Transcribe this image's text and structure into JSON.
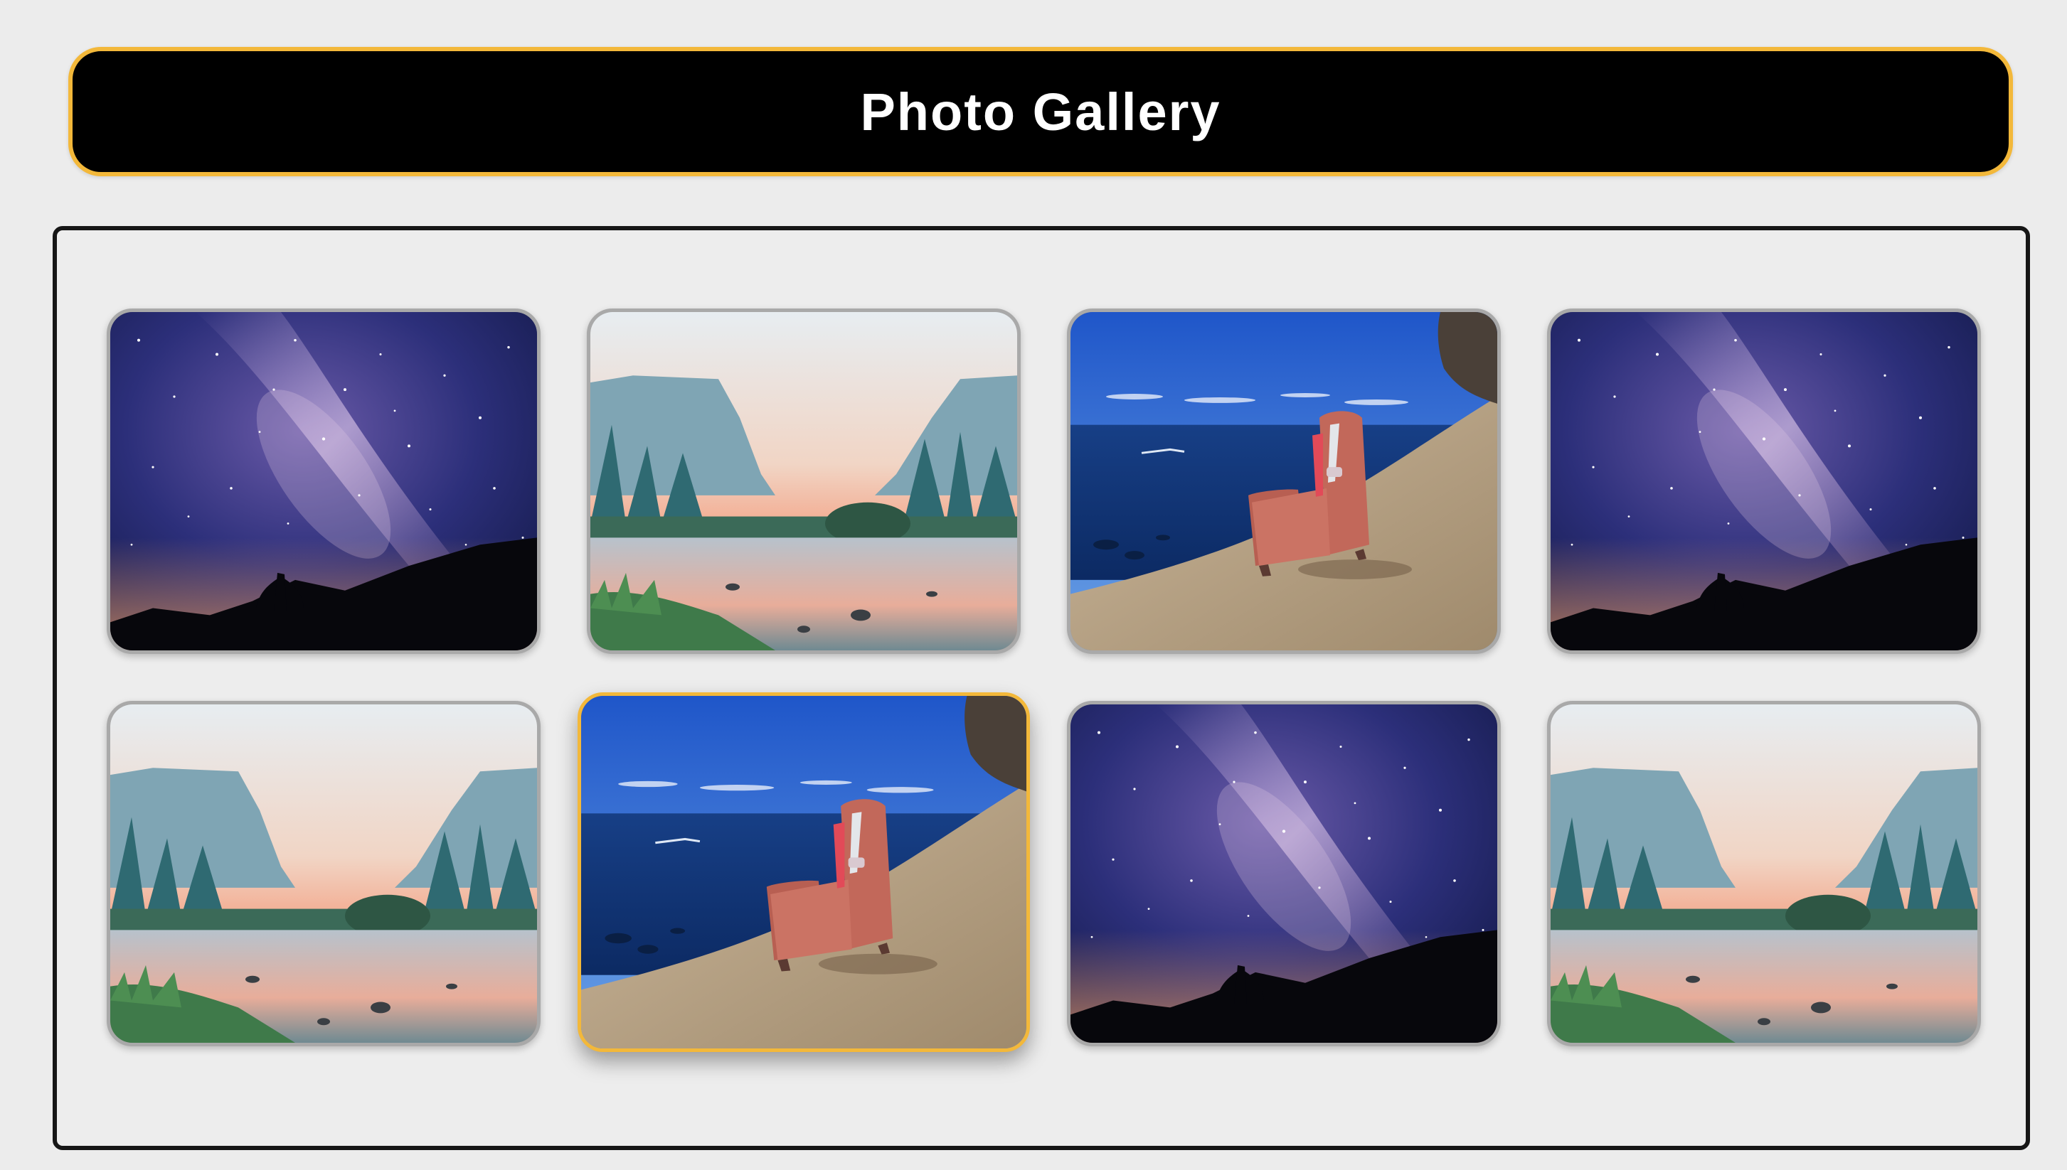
{
  "header": {
    "title": "Photo Gallery"
  },
  "theme": {
    "accent": "#f3b83a",
    "header_bg": "#000000",
    "frame": "#161616",
    "page_bg": "#ececec"
  },
  "gallery": {
    "selected_index": 5,
    "photos": [
      {
        "scene": "milky-way-night-sky"
      },
      {
        "scene": "valley-river-dawn"
      },
      {
        "scene": "armchair-on-coastal-cliff"
      },
      {
        "scene": "milky-way-night-sky"
      },
      {
        "scene": "valley-river-dawn"
      },
      {
        "scene": "armchair-on-coastal-cliff"
      },
      {
        "scene": "milky-way-night-sky"
      },
      {
        "scene": "valley-river-dawn"
      }
    ]
  }
}
